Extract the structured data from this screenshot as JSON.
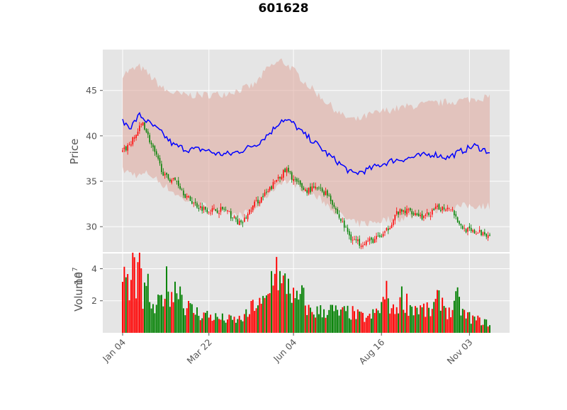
{
  "chart_data": {
    "type": "candlestick",
    "title": "601628",
    "ylabel_price": "Price",
    "ylabel_volume": "Volume",
    "volume_multiplier_label": "10",
    "volume_multiplier_exp": "7",
    "x_tick_labels": [
      "Jan 04",
      "Mar 22",
      "Jun 04",
      "Aug 16",
      "Nov 03"
    ],
    "x_tick_indices": [
      0,
      51,
      101,
      153,
      205
    ],
    "price_ylim": [
      27.2,
      49.5
    ],
    "price_yticks": [
      30,
      35,
      40,
      45
    ],
    "volume_ylim": [
      0,
      4.95
    ],
    "volume_yticks": [
      2,
      4
    ],
    "grid": true,
    "colors": {
      "up": "#ff0000",
      "down": "#008000",
      "band": "#e0aca2",
      "ma": "#0000ff",
      "background": "#e5e5e5",
      "grid": "#ffffff"
    },
    "close_anchors": [
      [
        0,
        38.2
      ],
      [
        6,
        39.5
      ],
      [
        12,
        41.5
      ],
      [
        18,
        38.5
      ],
      [
        25,
        35.5
      ],
      [
        32,
        35.0
      ],
      [
        38,
        33.2
      ],
      [
        45,
        32.2
      ],
      [
        52,
        31.8
      ],
      [
        60,
        31.9
      ],
      [
        70,
        30.2
      ],
      [
        78,
        32.5
      ],
      [
        86,
        33.8
      ],
      [
        92,
        35.5
      ],
      [
        97,
        36.2
      ],
      [
        102,
        35.0
      ],
      [
        108,
        34.0
      ],
      [
        115,
        34.2
      ],
      [
        122,
        33.5
      ],
      [
        128,
        31.0
      ],
      [
        135,
        28.8
      ],
      [
        140,
        28.2
      ],
      [
        148,
        28.5
      ],
      [
        155,
        29.2
      ],
      [
        162,
        31.5
      ],
      [
        170,
        31.8
      ],
      [
        178,
        31.0
      ],
      [
        186,
        32.0
      ],
      [
        194,
        32.2
      ],
      [
        200,
        30.0
      ],
      [
        206,
        29.4
      ],
      [
        217,
        29.2
      ]
    ],
    "ma_anchors": [
      [
        0,
        41.5
      ],
      [
        5,
        41.0
      ],
      [
        10,
        42.3
      ],
      [
        15,
        41.5
      ],
      [
        22,
        40.5
      ],
      [
        30,
        39.0
      ],
      [
        38,
        38.5
      ],
      [
        48,
        38.5
      ],
      [
        56,
        38.0
      ],
      [
        64,
        38.0
      ],
      [
        72,
        38.5
      ],
      [
        80,
        39.2
      ],
      [
        88,
        40.5
      ],
      [
        94,
        41.8
      ],
      [
        100,
        41.5
      ],
      [
        107,
        40.2
      ],
      [
        114,
        39.2
      ],
      [
        121,
        38.0
      ],
      [
        128,
        37.0
      ],
      [
        136,
        35.8
      ],
      [
        144,
        36.2
      ],
      [
        152,
        36.8
      ],
      [
        160,
        37.3
      ],
      [
        168,
        37.5
      ],
      [
        176,
        37.8
      ],
      [
        184,
        38.0
      ],
      [
        192,
        37.6
      ],
      [
        200,
        38.3
      ],
      [
        208,
        38.9
      ],
      [
        217,
        38.2
      ]
    ],
    "band_upper_anchors": [
      [
        0,
        46.8
      ],
      [
        10,
        47.6
      ],
      [
        15,
        46.8
      ],
      [
        25,
        45.0
      ],
      [
        35,
        44.5
      ],
      [
        48,
        44.5
      ],
      [
        58,
        44.6
      ],
      [
        68,
        45.0
      ],
      [
        78,
        45.6
      ],
      [
        86,
        47.5
      ],
      [
        94,
        48.3
      ],
      [
        100,
        47.4
      ],
      [
        110,
        45.5
      ],
      [
        120,
        43.8
      ],
      [
        130,
        42.2
      ],
      [
        138,
        41.7
      ],
      [
        146,
        42.3
      ],
      [
        156,
        42.8
      ],
      [
        168,
        43.2
      ],
      [
        180,
        43.5
      ],
      [
        192,
        43.7
      ],
      [
        204,
        44.0
      ],
      [
        217,
        44.3
      ]
    ],
    "band_lower_anchors": [
      [
        0,
        36.2
      ],
      [
        10,
        35.6
      ],
      [
        15,
        35.9
      ],
      [
        25,
        34.5
      ],
      [
        35,
        33.1
      ],
      [
        48,
        32.3
      ],
      [
        58,
        31.6
      ],
      [
        68,
        31.2
      ],
      [
        78,
        31.8
      ],
      [
        86,
        33.6
      ],
      [
        94,
        35.0
      ],
      [
        100,
        34.9
      ],
      [
        110,
        33.8
      ],
      [
        120,
        32.6
      ],
      [
        130,
        31.1
      ],
      [
        138,
        30.3
      ],
      [
        146,
        30.4
      ],
      [
        156,
        30.8
      ],
      [
        168,
        31.0
      ],
      [
        180,
        31.5
      ],
      [
        192,
        32.1
      ],
      [
        204,
        32.3
      ],
      [
        217,
        32.3
      ]
    ],
    "volume_anchors": [
      [
        0,
        2.6
      ],
      [
        2,
        4.5
      ],
      [
        4,
        2.2
      ],
      [
        6,
        4.7
      ],
      [
        8,
        3.6
      ],
      [
        10,
        4.6
      ],
      [
        12,
        2.2
      ],
      [
        15,
        3.0
      ],
      [
        18,
        1.4
      ],
      [
        22,
        2.0
      ],
      [
        26,
        3.3
      ],
      [
        30,
        2.6
      ],
      [
        33,
        3.6
      ],
      [
        36,
        2.0
      ],
      [
        40,
        1.6
      ],
      [
        45,
        1.3
      ],
      [
        50,
        1.2
      ],
      [
        56,
        1.0
      ],
      [
        62,
        0.9
      ],
      [
        68,
        0.85
      ],
      [
        74,
        1.2
      ],
      [
        78,
        2.0
      ],
      [
        82,
        1.8
      ],
      [
        86,
        2.4
      ],
      [
        90,
        5.0
      ],
      [
        94,
        3.0
      ],
      [
        98,
        3.5
      ],
      [
        102,
        2.0
      ],
      [
        106,
        2.5
      ],
      [
        110,
        1.5
      ],
      [
        116,
        1.4
      ],
      [
        122,
        1.6
      ],
      [
        128,
        1.3
      ],
      [
        134,
        1.4
      ],
      [
        140,
        1.1
      ],
      [
        146,
        1.0
      ],
      [
        152,
        1.6
      ],
      [
        156,
        2.6
      ],
      [
        160,
        1.4
      ],
      [
        165,
        2.4
      ],
      [
        170,
        1.8
      ],
      [
        176,
        1.6
      ],
      [
        182,
        1.4
      ],
      [
        188,
        2.4
      ],
      [
        193,
        1.3
      ],
      [
        198,
        2.2
      ],
      [
        202,
        1.2
      ],
      [
        208,
        0.9
      ],
      [
        212,
        0.8
      ],
      [
        217,
        0.6
      ]
    ]
  }
}
